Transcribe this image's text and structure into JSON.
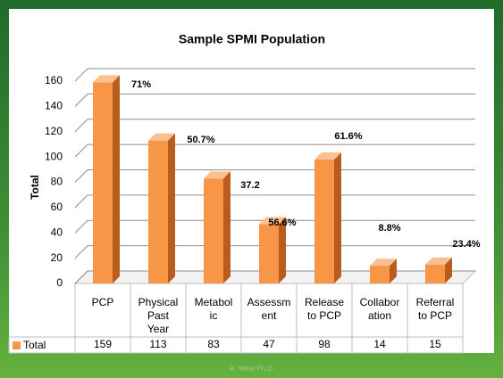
{
  "chart_data": {
    "type": "bar3d",
    "title": "Sample SPMI Population",
    "y_label": "Total",
    "categories": [
      [
        "PCP"
      ],
      [
        "Physical",
        "Past",
        "Year"
      ],
      [
        "Metabol",
        "ic"
      ],
      [
        "Assessm",
        "ent"
      ],
      [
        "Release",
        "to PCP"
      ],
      [
        "Collabor",
        "ation"
      ],
      [
        "Referral",
        "to PCP"
      ]
    ],
    "series": [
      {
        "name": "Total",
        "color": "#f79646",
        "values": [
          159,
          113,
          83,
          47,
          98,
          14,
          15
        ]
      }
    ],
    "annotations": [
      "71%",
      "50.7%",
      "37.2",
      "56.6%",
      "61.6%",
      "8.8%",
      "23.4%"
    ],
    "ylim": [
      0,
      160
    ],
    "yticks": [
      0,
      20,
      40,
      60,
      80,
      100,
      120,
      140,
      160
    ],
    "grid": true,
    "footer": "R. West Ph.D."
  }
}
